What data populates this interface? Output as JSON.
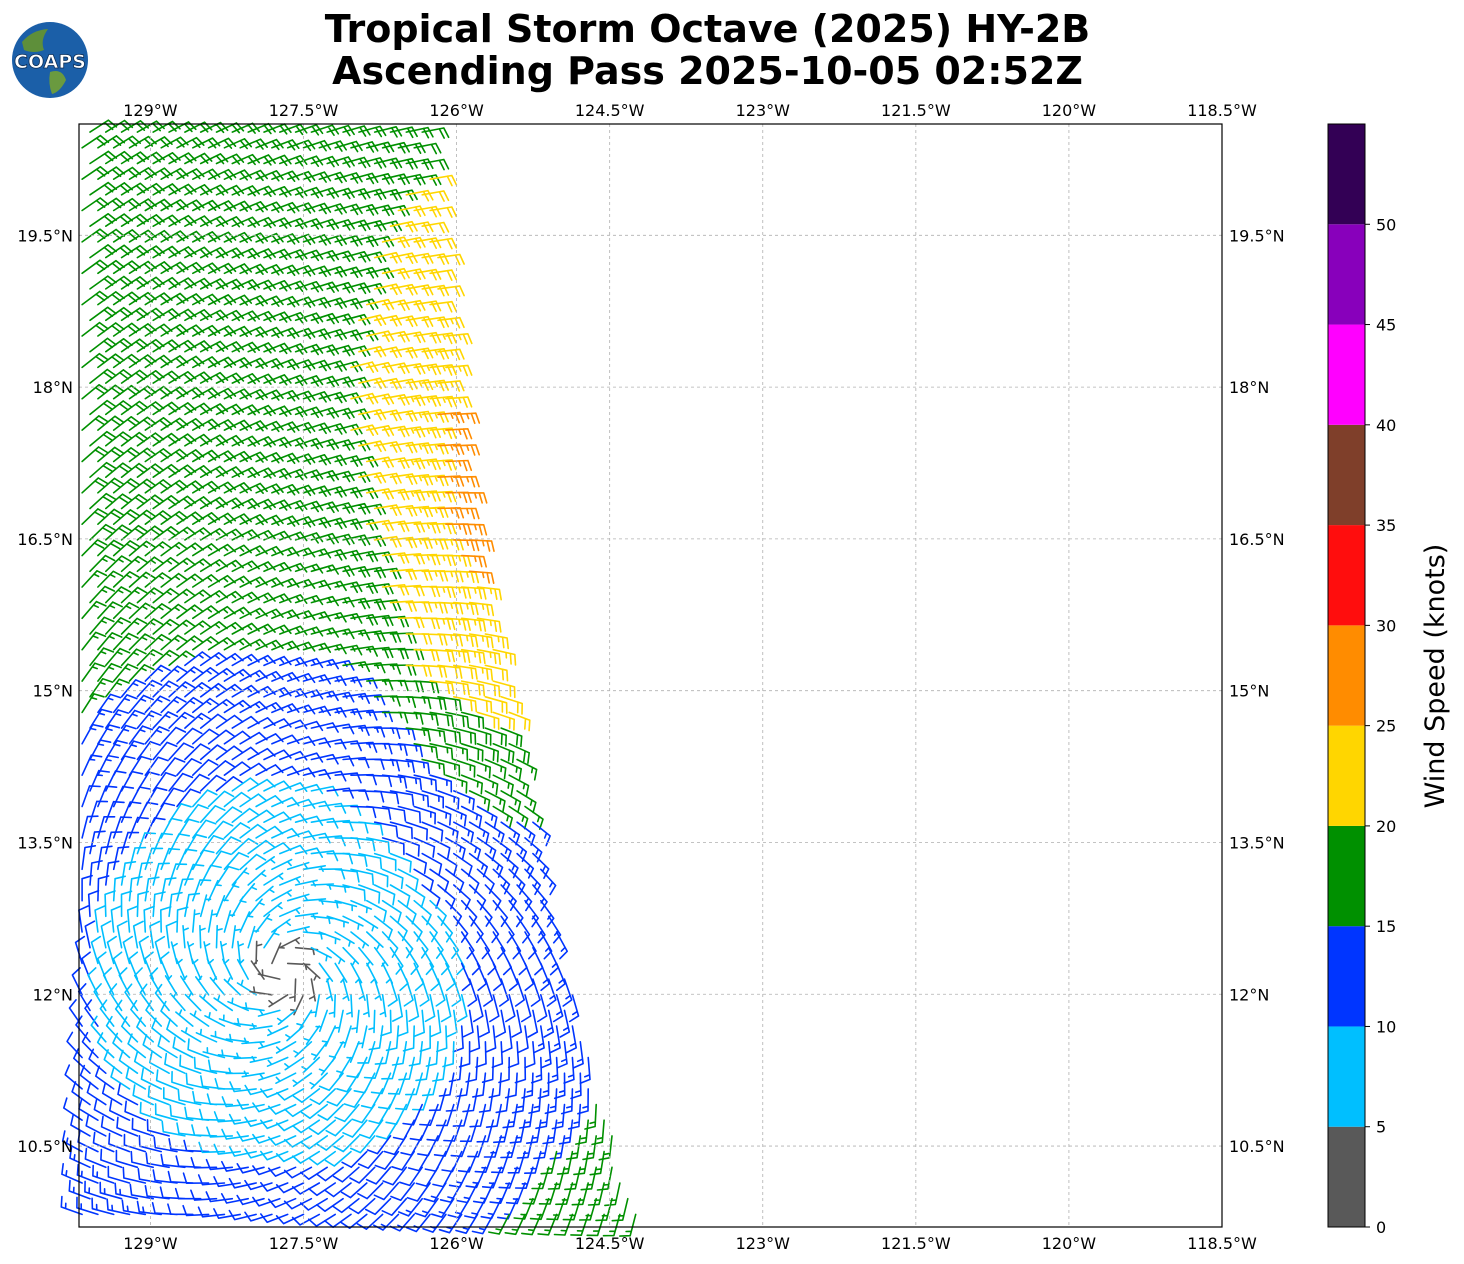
{
  "logo": {
    "text": "COAPS",
    "colors": {
      "ocean": "#1b5fa8",
      "land": "#5e8f3a",
      "text": "#ffffff"
    }
  },
  "title": {
    "line1": "Tropical Storm Octave (2025) HY-2B",
    "line2": "Ascending Pass 2025-10-05 02:52Z"
  },
  "chart_data": {
    "type": "wind-barbs",
    "xlim": [
      -129.7,
      -118.5
    ],
    "ylim": [
      9.7,
      20.6
    ],
    "x_ticks": [
      -129,
      -127.5,
      -126,
      -124.5,
      -123,
      -121.5,
      -120,
      -118.5
    ],
    "x_tick_labels": [
      "129°W",
      "127.5°W",
      "126°W",
      "124.5°W",
      "123°W",
      "121.5°W",
      "120°W",
      "118.5°W"
    ],
    "y_ticks": [
      10.5,
      12,
      13.5,
      15,
      16.5,
      18,
      19.5
    ],
    "y_tick_labels": [
      "10.5°N",
      "12°N",
      "13.5°N",
      "15°N",
      "16.5°N",
      "18°N",
      "19.5°N"
    ],
    "grid": true,
    "grid_style": "dashed",
    "swath_east_edge": [
      [
        20.6,
        -126.3
      ],
      [
        16.7,
        -125.9
      ],
      [
        13.5,
        -125.2
      ],
      [
        11.0,
        -124.6
      ],
      [
        9.7,
        -124.2
      ]
    ],
    "storm_center": {
      "lon": -127.7,
      "lat": 12.2
    },
    "wind_field_note_values": {
      "far_field_kt": [
        16,
        19
      ],
      "yellow_band_kt": [
        21,
        24
      ],
      "peak_kt": 27
    },
    "colorbar": {
      "label": "Wind Speed (knots)",
      "bounds": [
        0,
        5,
        10,
        15,
        20,
        25,
        30,
        35,
        40,
        45,
        50,
        55
      ],
      "tick_labels": [
        "0",
        "5",
        "10",
        "15",
        "20",
        "25",
        "30",
        "35",
        "40",
        "45",
        "50"
      ],
      "colors": [
        "#595959",
        "#00bfff",
        "#0035ff",
        "#009000",
        "#ffd600",
        "#ff8c00",
        "#ff0d0d",
        "#7f3f2a",
        "#ff00ff",
        "#8800bb",
        "#330055"
      ]
    }
  }
}
